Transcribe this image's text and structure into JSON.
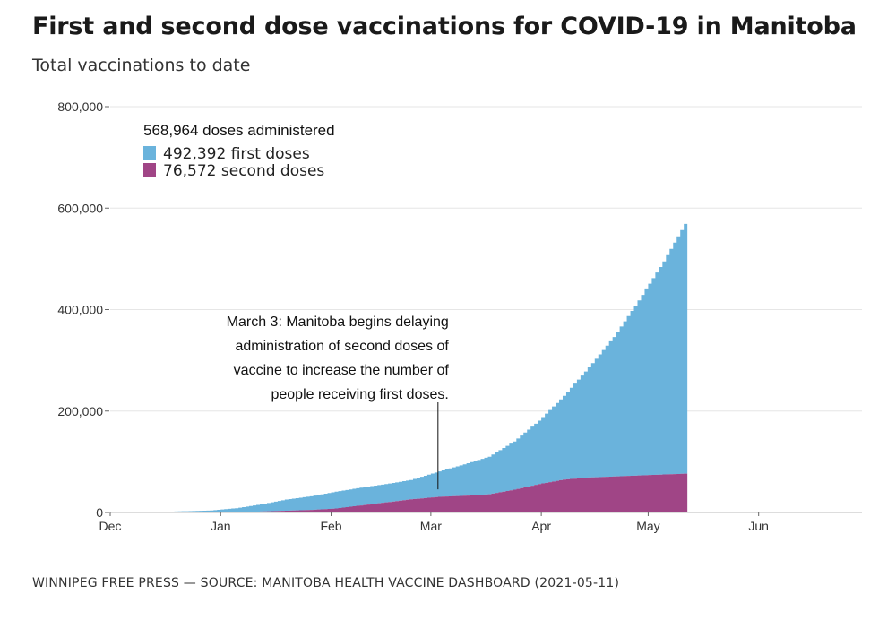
{
  "header": {
    "title": "First and second dose vaccinations for COVID-19 in Manitoba",
    "subtitle": "Total vaccinations to date"
  },
  "footer": {
    "source": "WINNIPEG FREE PRESS — SOURCE: MANITOBA HEALTH VACCINE DASHBOARD (2021-05-11)"
  },
  "legend": {
    "header": "568,964 doses administered",
    "items": [
      {
        "label": "492,392 first doses",
        "color": "#6ab3dc"
      },
      {
        "label": "76,572 second doses",
        "color": "#a04586"
      }
    ]
  },
  "annotation": {
    "date": "2021-03-03",
    "lines": [
      "March 3: Manitoba begins delaying",
      "administration of second doses of",
      "vaccine to increase the number of",
      "people receiving first doses."
    ]
  },
  "chart_data": {
    "type": "area",
    "stacked": true,
    "title": "First and second dose vaccinations for COVID-19 in Manitoba",
    "subtitle": "Total vaccinations to date",
    "xlabel": "",
    "ylabel": "",
    "xlim": [
      "2020-12-01",
      "2021-06-30"
    ],
    "ylim": [
      0,
      800000
    ],
    "y_ticks": [
      {
        "value": 0,
        "label": "0"
      },
      {
        "value": 200000,
        "label": "200,000"
      },
      {
        "value": 400000,
        "label": "400,000"
      },
      {
        "value": 600000,
        "label": "600,000"
      },
      {
        "value": 800000,
        "label": "800,000"
      }
    ],
    "x_ticks": [
      {
        "date": "2020-12-01",
        "label": "Dec"
      },
      {
        "date": "2021-01-01",
        "label": "Jan"
      },
      {
        "date": "2021-02-01",
        "label": "Feb"
      },
      {
        "date": "2021-03-01",
        "label": "Mar"
      },
      {
        "date": "2021-04-01",
        "label": "Apr"
      },
      {
        "date": "2021-05-01",
        "label": "May"
      },
      {
        "date": "2021-06-01",
        "label": "Jun"
      }
    ],
    "grid": true,
    "legend_position": "top-left",
    "x": [
      "2020-12-16",
      "2020-12-22",
      "2020-12-29",
      "2021-01-05",
      "2021-01-12",
      "2021-01-19",
      "2021-01-26",
      "2021-02-02",
      "2021-02-09",
      "2021-02-16",
      "2021-02-23",
      "2021-03-03",
      "2021-03-10",
      "2021-03-17",
      "2021-03-24",
      "2021-03-31",
      "2021-04-07",
      "2021-04-14",
      "2021-04-21",
      "2021-04-28",
      "2021-05-05",
      "2021-05-11"
    ],
    "series": [
      {
        "name": "second doses",
        "color": "#a04586",
        "values": [
          0,
          0,
          0,
          500,
          2000,
          3500,
          5000,
          8000,
          14000,
          20000,
          26000,
          31000,
          33000,
          36000,
          45000,
          56000,
          65000,
          69000,
          71000,
          73000,
          75000,
          76572
        ]
      },
      {
        "name": "first doses",
        "color": "#6ab3dc",
        "values": [
          1500,
          2500,
          4000,
          8000,
          14000,
          22000,
          27000,
          33000,
          35000,
          36000,
          38000,
          50000,
          62000,
          74000,
          95000,
          125000,
          165000,
          217000,
          275000,
          345000,
          420000,
          492392
        ]
      }
    ]
  }
}
